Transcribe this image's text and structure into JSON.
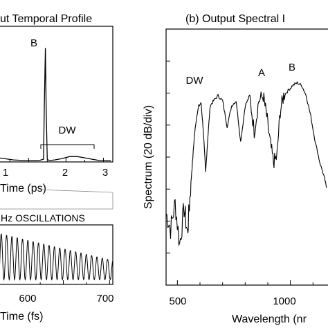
{
  "chart_data": [
    {
      "type": "line",
      "title": "ut Temporal Profile",
      "xlabel": "Time (ps)",
      "ylabel": "",
      "xlim": [
        0.2,
        3.25
      ],
      "xticks": [
        1,
        2,
        3
      ],
      "xtick_labels": [
        "1",
        "2",
        "3"
      ],
      "ylim": [
        0,
        1
      ],
      "annotations": [
        {
          "text": "B",
          "x": 1.45,
          "y": 0.9
        },
        {
          "text": "DW",
          "x": 2.2,
          "y": 0.3
        }
      ],
      "series": [
        {
          "x": [
            0.2,
            0.6,
            0.9,
            1.1,
            1.3,
            1.4,
            1.42,
            1.45,
            1.47,
            1.5,
            1.55,
            1.7,
            1.9,
            2.1,
            2.3,
            2.5,
            2.7,
            2.9,
            3.2
          ],
          "y": [
            0.03,
            0.015,
            0.01,
            0.01,
            0.012,
            0.02,
            0.4,
            0.84,
            0.4,
            0.02,
            0.01,
            0.015,
            0.025,
            0.04,
            0.04,
            0.03,
            0.02,
            0.01,
            0.008
          ]
        }
      ]
    },
    {
      "type": "line",
      "title": "Hz OSCILLATIONS",
      "xlabel": "Time (fs)",
      "ylabel": "",
      "xlim": [
        460,
        707
      ],
      "xticks": [
        600,
        700
      ],
      "xtick_labels": [
        "600",
        "700"
      ],
      "ylim": [
        0,
        1
      ],
      "oscillation": {
        "period_fs": 11.5,
        "start_amplitude": 0.78,
        "end_amplitude": 0.32
      }
    },
    {
      "type": "line",
      "title": "(b) Output Spectral I",
      "xlabel": "Wavelength (nr",
      "ylabel": "Spectrum (20 dB/div)",
      "xlim": [
        450,
        1200
      ],
      "xticks": [
        500,
        1000
      ],
      "xtick_labels": [
        "500",
        "1000"
      ],
      "ylim": [
        -100,
        0
      ],
      "y_divisions": 8,
      "annotations": [
        {
          "text": "DW",
          "x": 590,
          "y": -16
        },
        {
          "text": "A",
          "x": 882,
          "y": -13
        },
        {
          "text": "B",
          "x": 1030,
          "y": -10
        }
      ],
      "series": [
        {
          "x": [
            450,
            470,
            490,
            510,
            530,
            545,
            555,
            565,
            575,
            585,
            595,
            605,
            615,
            625,
            635,
            645,
            660,
            680,
            700,
            720,
            740,
            760,
            780,
            800,
            820,
            840,
            860,
            880,
            895,
            910,
            925,
            940,
            955,
            970,
            990,
            1010,
            1030,
            1050,
            1070,
            1090,
            1110,
            1130,
            1150,
            1160
          ],
          "y": [
            -72,
            -78,
            -68,
            -84,
            -70,
            -80,
            -66,
            -54,
            -42,
            -34,
            -30,
            -29,
            -40,
            -56,
            -42,
            -30,
            -28,
            -26,
            -28,
            -38,
            -30,
            -28,
            -44,
            -30,
            -26,
            -40,
            -28,
            -26,
            -34,
            -44,
            -52,
            -50,
            -32,
            -26,
            -24,
            -22,
            -21,
            -22,
            -26,
            -34,
            -44,
            -52,
            -58,
            -62
          ]
        }
      ]
    }
  ]
}
